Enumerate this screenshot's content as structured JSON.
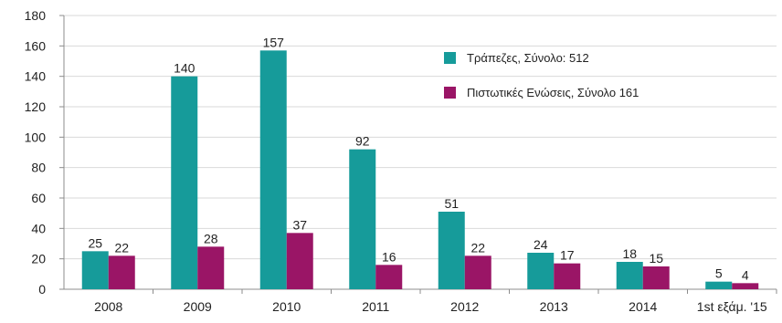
{
  "colors": {
    "banks": "#169b9a",
    "credit_unions": "#9a1566",
    "grid": "#d9d9d9",
    "axis": "#8c8c8c",
    "text": "#222222"
  },
  "chart_data": {
    "type": "bar",
    "categories": [
      "2008",
      "2009",
      "2010",
      "2011",
      "2012",
      "2013",
      "2014",
      "1st εξάμ. '15"
    ],
    "series": [
      {
        "name": "Τράπεζες, Σύνολο: 512",
        "values": [
          25,
          140,
          157,
          92,
          51,
          24,
          18,
          5
        ]
      },
      {
        "name": "Πιστωτικές Ενώσεις, Σύνολο 161",
        "values": [
          22,
          28,
          37,
          16,
          22,
          17,
          15,
          4
        ]
      }
    ],
    "data_labels": [
      [
        "25",
        "140",
        "157",
        "92",
        "51",
        "24",
        "18",
        "5"
      ],
      [
        "22",
        "28",
        "37",
        "16",
        "22",
        "17",
        "15",
        "4"
      ]
    ],
    "y_ticks": [
      "0",
      "20",
      "40",
      "60",
      "80",
      "100",
      "120",
      "140",
      "160",
      "180"
    ],
    "ylim": [
      0,
      180
    ],
    "grid": true,
    "legend_position": "top-right",
    "title": "",
    "xlabel": "",
    "ylabel": ""
  }
}
